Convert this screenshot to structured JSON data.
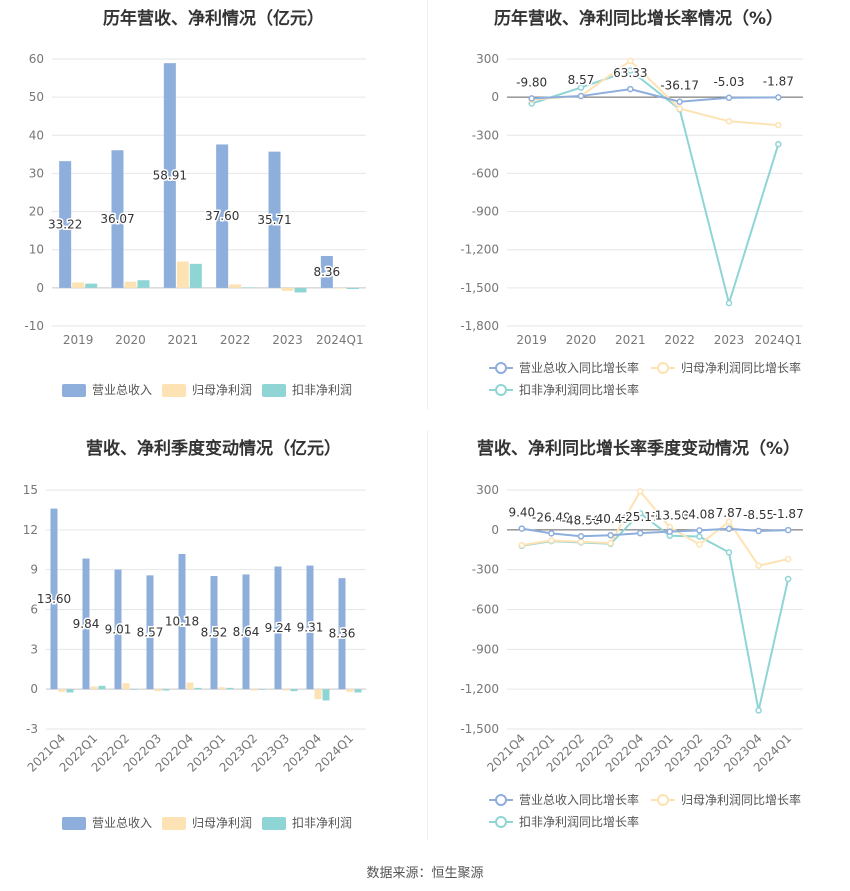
{
  "source": "数据来源：恒生聚源",
  "colors": {
    "revenue": "#8eaedc",
    "net_profit": "#fde3b4",
    "deducted_profit": "#8fd5d6",
    "grid": "#e6e6e6",
    "axis_text": "#777777"
  },
  "chart_data": [
    {
      "id": "annual-values",
      "type": "bar",
      "title": "历年营收、净利情况（亿元）",
      "categories": [
        "2019",
        "2020",
        "2021",
        "2022",
        "2023",
        "2024Q1"
      ],
      "ylim": [
        -10,
        60
      ],
      "yticks": [
        -10,
        0,
        10,
        20,
        30,
        40,
        50,
        60
      ],
      "series": [
        {
          "name": "营业总收入",
          "values": [
            33.22,
            36.07,
            58.91,
            37.6,
            35.71,
            8.36
          ],
          "labels": [
            "33.22",
            "36.07",
            "58.91",
            "37.60",
            "35.71",
            "8.36"
          ]
        },
        {
          "name": "归母净利润",
          "values": [
            1.4,
            1.6,
            6.9,
            0.9,
            -0.8,
            -0.2
          ]
        },
        {
          "name": "扣非净利润",
          "values": [
            1.1,
            2.0,
            6.3,
            0.1,
            -1.2,
            -0.3
          ]
        }
      ],
      "grid": true,
      "legend": "bottom"
    },
    {
      "id": "annual-growth",
      "type": "line",
      "title": "历年营收、净利同比增长率情况（%）",
      "categories": [
        "2019",
        "2020",
        "2021",
        "2022",
        "2023",
        "2024Q1"
      ],
      "ylim": [
        -1800,
        300
      ],
      "yticks": [
        -1800,
        -1500,
        -1200,
        -900,
        -600,
        -300,
        0,
        300
      ],
      "ytick_labels": [
        "-1,800",
        "-1,500",
        "-1,200",
        "-900",
        "-600",
        "-300",
        "0",
        "300"
      ],
      "series": [
        {
          "name": "营业总收入同比增长率",
          "values": [
            -9.8,
            8.57,
            63.33,
            -36.17,
            -5.03,
            -1.87
          ],
          "labels": [
            "-9.80",
            "8.57",
            "63.33",
            "-36.17",
            "-5.03",
            "-1.87"
          ]
        },
        {
          "name": "归母净利润同比增长率",
          "values": [
            -20,
            10,
            285,
            -90,
            -190,
            -220
          ]
        },
        {
          "name": "扣非净利润同比增长率",
          "values": [
            -50,
            75,
            210,
            -95,
            -1620,
            -370
          ]
        }
      ],
      "grid": true,
      "legend": "bottom"
    },
    {
      "id": "quarterly-values",
      "type": "bar",
      "title": "营收、净利季度变动情况（亿元）",
      "categories": [
        "2021Q4",
        "2022Q1",
        "2022Q2",
        "2022Q3",
        "2022Q4",
        "2023Q1",
        "2023Q2",
        "2023Q3",
        "2023Q4",
        "2024Q1"
      ],
      "ylim": [
        -3,
        15
      ],
      "yticks": [
        -3,
        0,
        3,
        6,
        9,
        12,
        15
      ],
      "series": [
        {
          "name": "营业总收入",
          "values": [
            13.6,
            9.84,
            9.01,
            8.57,
            10.18,
            8.52,
            8.64,
            9.24,
            9.31,
            8.36
          ],
          "labels": [
            "13.60",
            "9.84",
            "9.01",
            "8.57",
            "10.18",
            "8.52",
            "8.64",
            "9.24",
            "9.31",
            "8.36"
          ]
        },
        {
          "name": "归母净利润",
          "values": [
            -0.2,
            0.2,
            0.45,
            -0.15,
            0.5,
            0.15,
            -0.1,
            -0.1,
            -0.75,
            -0.2
          ]
        },
        {
          "name": "扣非净利润",
          "values": [
            -0.25,
            0.25,
            -0.05,
            -0.1,
            0.1,
            0.1,
            -0.05,
            -0.15,
            -0.85,
            -0.25
          ]
        }
      ],
      "grid": true,
      "legend": "bottom"
    },
    {
      "id": "quarterly-growth",
      "type": "line",
      "title": "营收、净利同比增长率季度变动情况（%）",
      "categories": [
        "2021Q4",
        "2022Q1",
        "2022Q2",
        "2022Q3",
        "2022Q4",
        "2023Q1",
        "2023Q2",
        "2023Q3",
        "2023Q4",
        "2024Q1"
      ],
      "ylim": [
        -1500,
        300
      ],
      "yticks": [
        -1500,
        -1200,
        -900,
        -600,
        -300,
        0,
        300
      ],
      "ytick_labels": [
        "-1,500",
        "-1,200",
        "-900",
        "-600",
        "-300",
        "0",
        "300"
      ],
      "series": [
        {
          "name": "营业总收入同比增长率",
          "values": [
            9.4,
            -26.49,
            -48.56,
            -40.49,
            -25.17,
            -13.5,
            -4.08,
            7.87,
            -8.55,
            -1.87
          ],
          "labels": [
            "9.40",
            "-26.49",
            "-48.56",
            "-40.49",
            "-25.17",
            "-13.50",
            "-4.08",
            "7.87",
            "-8.55",
            "-1.87"
          ]
        },
        {
          "name": "归母净利润同比增长率",
          "values": [
            -115,
            -80,
            -90,
            -100,
            290,
            20,
            -110,
            60,
            -270,
            -220
          ]
        },
        {
          "name": "扣非净利润同比增长率",
          "values": [
            -120,
            -85,
            -95,
            -105,
            125,
            -45,
            -50,
            -170,
            -1360,
            -370
          ]
        }
      ],
      "grid": true,
      "legend": "bottom"
    }
  ]
}
